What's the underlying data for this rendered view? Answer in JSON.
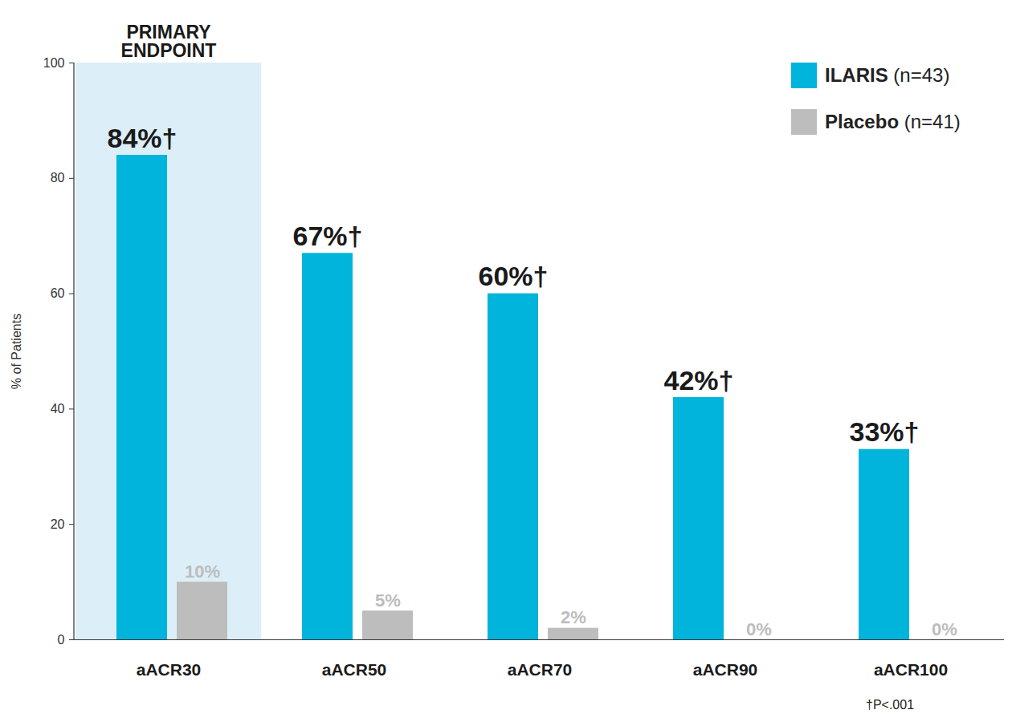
{
  "chart_data": {
    "type": "bar",
    "categories": [
      "aACR30",
      "aACR50",
      "aACR70",
      "aACR90",
      "aACR100"
    ],
    "series": [
      {
        "name": "ILARIS (n=43)",
        "color": "#00b4dc",
        "values": [
          84,
          67,
          60,
          42,
          33
        ],
        "value_labels": [
          "84%†",
          "67%†",
          "60%†",
          "42%†",
          "33%†"
        ]
      },
      {
        "name": "Placebo (n=41)",
        "color": "#bdbdbd",
        "values": [
          10,
          5,
          2,
          0,
          0
        ],
        "value_labels": [
          "10%",
          "5%",
          "2%",
          "0%",
          "0%"
        ]
      }
    ],
    "y_label": "% of Patients",
    "ylim": [
      0,
      100
    ],
    "yticks": [
      0,
      20,
      40,
      60,
      80,
      100
    ],
    "grid": false,
    "data_labels": true,
    "legend": "upper right",
    "annotations": [
      {
        "text": "PRIMARY ENDPOINT",
        "category": "aACR30",
        "color": "#dceef8"
      }
    ],
    "footnote": "†P<.001"
  }
}
